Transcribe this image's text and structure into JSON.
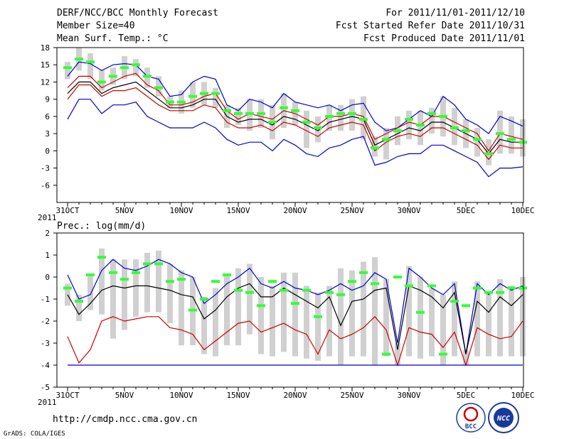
{
  "header": {
    "title": "DERF/NCC/BCC Monthly Forecast",
    "member": "Member Size=40",
    "variable": "Mean Surf. Temp.: °C",
    "period": "For 2011/11/01-2011/12/10",
    "started": "Fcst Started Refer Date 2011/10/31",
    "produced": "Fcst Produced Date 2011/11/01"
  },
  "footer": {
    "url": "http://cmdp.ncc.cma.gov.cn",
    "credit": "GrADS: COLA/IGES",
    "logo1": "BCC",
    "logo2": "NCC"
  },
  "colors": {
    "max": "#0000cc",
    "min": "#0000cc",
    "upper": "#cc0000",
    "lower": "#cc0000",
    "mean": "#000000",
    "median": "#33ff33",
    "box": "#d0d0d0"
  },
  "chart_data": [
    {
      "type": "box-line",
      "title": "",
      "x_start": "2011-10-31",
      "xticks": [
        {
          "day": 0,
          "label": "31OCT"
        },
        {
          "day": 5,
          "label": "5NOV"
        },
        {
          "day": 10,
          "label": "10NOV"
        },
        {
          "day": 15,
          "label": "15NOV"
        },
        {
          "day": 20,
          "label": "20NOV"
        },
        {
          "day": 25,
          "label": "25NOV"
        },
        {
          "day": 30,
          "label": "30NOV"
        },
        {
          "day": 35,
          "label": "5DEC"
        },
        {
          "day": 40,
          "label": "10DEC"
        }
      ],
      "year_label": "2011",
      "ylim": [
        -9,
        18
      ],
      "yticks": [
        -6,
        -3,
        0,
        3,
        6,
        9,
        12,
        15,
        18
      ],
      "series": [
        {
          "name": "max",
          "values": [
            13,
            15.5,
            15.2,
            14,
            15,
            15.2,
            15,
            13,
            12.5,
            9.5,
            9.8,
            12,
            13,
            12.5,
            8,
            7,
            9,
            8.5,
            7.5,
            10,
            8.5,
            8,
            7.5,
            8,
            7,
            8,
            8.3,
            5,
            3.5,
            4,
            5.5,
            7,
            6,
            9.5,
            8,
            5.5,
            4.5,
            3,
            6,
            5.2,
            4.3
          ]
        },
        {
          "name": "upper",
          "values": [
            11,
            13,
            13,
            11,
            12,
            13,
            13.5,
            11.5,
            10.5,
            8,
            8,
            8.5,
            9.5,
            10,
            7,
            5.5,
            6.5,
            6,
            5.5,
            7,
            6.5,
            5.5,
            4.5,
            6,
            6,
            6.5,
            6,
            2,
            3,
            4,
            5,
            4.5,
            6,
            6,
            5,
            4,
            3,
            0,
            3,
            2.5,
            2
          ]
        },
        {
          "name": "mean",
          "values": [
            10,
            12,
            12,
            10,
            11,
            11.5,
            12,
            10.5,
            9,
            7.5,
            7.5,
            8,
            9,
            9,
            6,
            5,
            5.5,
            5.5,
            4.5,
            6,
            5.5,
            4.5,
            3.5,
            5,
            5.5,
            6,
            5.5,
            1,
            2,
            3,
            4,
            3.5,
            5,
            5,
            4,
            3,
            2,
            -0.5,
            2,
            1.5,
            1.5
          ]
        },
        {
          "name": "lower",
          "values": [
            9,
            11.5,
            11.5,
            9.5,
            10.5,
            10.5,
            11,
            9.5,
            8,
            7,
            7,
            7,
            8,
            7.5,
            5,
            4,
            4,
            4.5,
            3.5,
            5,
            4.5,
            3.5,
            2.5,
            4,
            4.5,
            5,
            4.5,
            0,
            1.5,
            2.5,
            3,
            2.5,
            4,
            4,
            3,
            2,
            1,
            -1.5,
            1,
            0.5,
            0.5
          ]
        },
        {
          "name": "min",
          "values": [
            5.5,
            9,
            9,
            6.5,
            8,
            8,
            8.5,
            6,
            5,
            4,
            4,
            4,
            5,
            4,
            2,
            1,
            1.5,
            1.5,
            0,
            2,
            1,
            -0.5,
            -1,
            0.5,
            1,
            2,
            2.5,
            -2.5,
            -2,
            -1,
            -0.5,
            -0.5,
            1,
            1,
            0,
            -1,
            -2,
            -4.5,
            -3,
            -3,
            -2.8
          ]
        },
        {
          "name": "median",
          "values": [
            14.5,
            16,
            15.5,
            12,
            13,
            14.5,
            15,
            13,
            11,
            8.5,
            8.5,
            9.5,
            10,
            10,
            7,
            6.5,
            6.5,
            6.5,
            5,
            7.5,
            7,
            5,
            4,
            6,
            6.5,
            6.5,
            5.5,
            0.5,
            2,
            3.5,
            5.5,
            4.5,
            6.5,
            6,
            4,
            3.5,
            2,
            -0.5,
            3,
            2,
            1.5
          ]
        }
      ],
      "box_low": [
        12.5,
        14,
        12.5,
        10.5,
        11.5,
        12.5,
        13,
        11,
        9.5,
        7.5,
        6.5,
        7.5,
        8,
        7.5,
        4,
        4.5,
        3.5,
        4,
        2,
        4,
        4.5,
        0.5,
        1.5,
        3.5,
        3.5,
        3.5,
        2,
        -1,
        -1.5,
        1,
        2,
        1,
        3,
        2.5,
        1,
        0.5,
        -1,
        -2.5,
        -0.5,
        -0.5,
        -1
      ],
      "box_high": [
        15.5,
        18,
        17,
        14,
        14.5,
        16.5,
        16,
        14.5,
        13,
        9.5,
        10.5,
        12,
        12,
        11,
        8,
        7.5,
        9,
        9,
        8,
        10,
        8.5,
        7,
        6,
        8,
        8,
        9,
        9.5,
        2.5,
        4,
        6,
        7,
        7,
        7.5,
        9.5,
        7.5,
        5.5,
        4,
        2,
        7,
        6,
        5.5
      ]
    },
    {
      "type": "box-line",
      "title": "Prec.: log(mm/d)",
      "x_start": "2011-10-31",
      "xticks": [
        {
          "day": 0,
          "label": "31OCT"
        },
        {
          "day": 5,
          "label": "5NOV"
        },
        {
          "day": 10,
          "label": "10NOV"
        },
        {
          "day": 15,
          "label": "15NOV"
        },
        {
          "day": 20,
          "label": "20NOV"
        },
        {
          "day": 25,
          "label": "25NOV"
        },
        {
          "day": 30,
          "label": "30NOV"
        },
        {
          "day": 35,
          "label": "5DEC"
        },
        {
          "day": 40,
          "label": "10DEC"
        }
      ],
      "year_label": "2011",
      "ylim": [
        -5,
        2
      ],
      "yticks": [
        -5,
        -4,
        -3,
        -2,
        -1,
        0,
        1,
        2
      ],
      "series": [
        {
          "name": "max",
          "values": [
            0.1,
            -1,
            -0.8,
            0.3,
            0.8,
            0.4,
            0.3,
            0.5,
            0.8,
            0.6,
            0.2,
            0,
            -1.2,
            -0.8,
            -0.3,
            0,
            0.4,
            -0.3,
            -0.5,
            -0.2,
            -0.5,
            -0.6,
            -0.8,
            -0.6,
            -0.3,
            -0.6,
            -0.4,
            0.2,
            -0.1,
            -3,
            0.4,
            0,
            -0.5,
            -0.8,
            -0.3,
            -3.5,
            -0.3,
            -0.8,
            -0.3,
            -0.6,
            -0.4
          ]
        },
        {
          "name": "mean",
          "values": [
            -0.8,
            -1.7,
            -1.2,
            -0.6,
            -0.4,
            -0.5,
            -0.4,
            -0.4,
            -0.5,
            -0.6,
            -0.8,
            -0.9,
            -1.9,
            -1.5,
            -0.9,
            -0.5,
            -0.3,
            -0.9,
            -0.9,
            -0.5,
            -0.8,
            -1.1,
            -1.4,
            -0.9,
            -2.2,
            -1.1,
            -1.0,
            -0.6,
            -0.5,
            -3.3,
            -0.4,
            -0.6,
            -0.9,
            -1.4,
            -0.7,
            -3.5,
            -1.1,
            -1.6,
            -0.9,
            -1.3,
            -0.8
          ]
        },
        {
          "name": "lower",
          "values": [
            -2.7,
            -3.9,
            -3.3,
            -2,
            -1.8,
            -2,
            -1.9,
            -1.8,
            -1.8,
            -2.3,
            -2.4,
            -2.6,
            -3.3,
            -2.9,
            -2.5,
            -2.1,
            -2,
            -2.5,
            -2.3,
            -2.1,
            -2.4,
            -2.6,
            -3.5,
            -2.4,
            -2.8,
            -2.6,
            -2.3,
            -1.8,
            -2.4,
            -4,
            -2.3,
            -2.5,
            -2.6,
            -3.2,
            -2.5,
            -4,
            -2.3,
            -2.6,
            -2.8,
            -2.7,
            -2
          ]
        },
        {
          "name": "min",
          "values": [
            -4,
            -4,
            -4,
            -4,
            -4,
            -4,
            -4,
            -4,
            -4,
            -4,
            -4,
            -4,
            -4,
            -4,
            -4,
            -4,
            -4,
            -4,
            -4,
            -4,
            -4,
            -4,
            -4,
            -4,
            -4,
            -4,
            -4,
            -4,
            -4,
            -4,
            -4,
            -4,
            -4,
            -4,
            -4,
            -4,
            -4,
            -4,
            -4,
            -4,
            -4
          ]
        },
        {
          "name": "median",
          "values": [
            -0.5,
            -1.1,
            0.1,
            0.9,
            0.2,
            -0.1,
            0.2,
            0.6,
            0.6,
            -0.2,
            -0.1,
            -1.5,
            -1,
            -0.2,
            0.1,
            -0.6,
            -0.7,
            -1.3,
            -0.2,
            -0.6,
            -1.2,
            -0.6,
            -1.8,
            -0.7,
            -0.8,
            -0.2,
            0.2,
            -0.3,
            -3.5,
            0,
            -0.4,
            -1.6,
            -0.4,
            -3.5,
            -1.1,
            -1.3,
            -0.5,
            -0.7,
            -0.7,
            -0.5,
            -0.5
          ]
        }
      ],
      "box_low": [
        -1.3,
        -2,
        -1.5,
        -1.7,
        -2.8,
        -2.4,
        -1.8,
        -1.6,
        -1.6,
        -2.1,
        -3.1,
        -3.1,
        -3.5,
        -3.6,
        -3.1,
        -3.1,
        -2.6,
        -3.5,
        -3.6,
        -3.4,
        -3.6,
        -3.7,
        -3.8,
        -3.6,
        -4,
        -3.6,
        -3.6,
        -4,
        -3.6,
        -4,
        -3.6,
        -3.7,
        -3.6,
        -4,
        -3.6,
        -4,
        -3.6,
        -3.6,
        -3.6,
        -3.6,
        -3.6
      ],
      "box_high": [
        -0.3,
        -0.8,
        0.1,
        1.3,
        0.8,
        0.8,
        0.8,
        1.1,
        1.2,
        0.6,
        0.3,
        0,
        -0.9,
        -0.5,
        0.1,
        0.4,
        0.6,
        0,
        -0.4,
        0.2,
        0.2,
        -0.4,
        -0.7,
        -0.4,
        0.4,
        0.3,
        0.7,
        0.9,
        -0.1,
        -3,
        0.5,
        0,
        -0.5,
        -0.8,
        -0.2,
        -3.3,
        -0.2,
        -0.7,
        -0.1,
        -0.4,
        0
      ]
    }
  ]
}
